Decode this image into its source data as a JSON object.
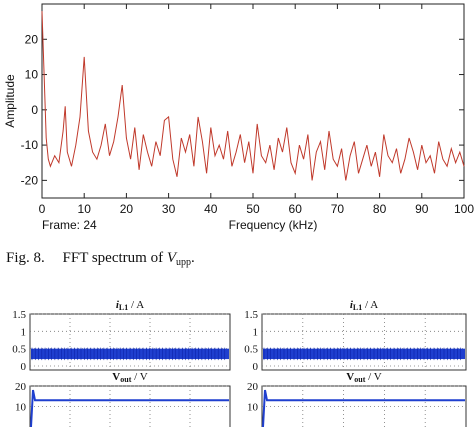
{
  "figure8": {
    "caption_label": "Fig. 8.",
    "caption_text": "FFT spectrum of",
    "caption_symbol": "V",
    "caption_subscript": "upp",
    "caption_end": ".",
    "frame_text": "Frame: 24",
    "colors": {
      "trace": "#c0392b",
      "axis": "#222222"
    }
  },
  "chart_data": [
    {
      "type": "line",
      "xlabel": "Frequency (kHz)",
      "ylabel": "Amplitude",
      "xlim": [
        0,
        100
      ],
      "ylim": [
        -25,
        30
      ],
      "xticks": [
        0,
        10,
        20,
        30,
        40,
        50,
        60,
        70,
        80,
        90,
        100
      ],
      "yticks": [
        20,
        10,
        0,
        -10,
        -20
      ],
      "grid": false,
      "series": [
        {
          "x": [
            0,
            0.5,
            1,
            1.5,
            2,
            3,
            4,
            5,
            5.5,
            6,
            7,
            8,
            9,
            10,
            11,
            12,
            13,
            14,
            15,
            16,
            17,
            18,
            19,
            20,
            21,
            22,
            23,
            24,
            25,
            26,
            27,
            28,
            29,
            30,
            31,
            32,
            33,
            34,
            35,
            36,
            37,
            38,
            39,
            40,
            41,
            42,
            43,
            44,
            45,
            46,
            47,
            48,
            49,
            50,
            51,
            52,
            53,
            54,
            55,
            56,
            57,
            58,
            59,
            60,
            61,
            62,
            63,
            64,
            65,
            66,
            67,
            68,
            69,
            70,
            71,
            72,
            73,
            74,
            75,
            76,
            77,
            78,
            79,
            80,
            81,
            82,
            83,
            84,
            85,
            86,
            87,
            88,
            89,
            90,
            91,
            92,
            93,
            94,
            95,
            96,
            97,
            98,
            99,
            100
          ],
          "y": [
            28,
            10,
            -8,
            -14,
            -16,
            -13,
            -15,
            -6,
            1,
            -12,
            -16,
            -10,
            -2,
            15,
            -6,
            -12,
            -14,
            -10,
            -4,
            -13,
            -9,
            -2,
            7,
            -8,
            -14,
            -5,
            -17,
            -7,
            -12,
            -16,
            -9,
            -13,
            -3,
            -2,
            -14,
            -19,
            -8,
            -12,
            -7,
            -16,
            -2,
            -9,
            -18,
            -5,
            -13,
            -10,
            -14,
            -6,
            -16,
            -12,
            -7,
            -15,
            -9,
            -18,
            -4,
            -13,
            -15,
            -10,
            -17,
            -8,
            -12,
            -5,
            -15,
            -18,
            -10,
            -14,
            -7,
            -20,
            -12,
            -9,
            -17,
            -6,
            -14,
            -16,
            -11,
            -20,
            -13,
            -9,
            -18,
            -14,
            -10,
            -16,
            -12,
            -19,
            -7,
            -13,
            -15,
            -11,
            -18,
            -14,
            -8,
            -12,
            -17,
            -10,
            -15,
            -13,
            -18,
            -9,
            -14,
            -16,
            -11,
            -15,
            -12,
            -16
          ]
        }
      ]
    },
    {
      "type": "line",
      "title": "i_L1 / A",
      "ylim": [
        0,
        1.5
      ],
      "yticks": [
        1.5,
        1,
        0.5,
        0
      ],
      "grid": true,
      "series": [
        {
          "x": [
            0,
            1
          ],
          "y": [
            0.35,
            0.35
          ],
          "band": [
            0.2,
            0.5
          ]
        }
      ]
    },
    {
      "type": "line",
      "title": "i_L1 / A",
      "ylim": [
        0,
        1.5
      ],
      "yticks": [
        1.5,
        1,
        0.5,
        0
      ],
      "grid": true,
      "series": [
        {
          "x": [
            0,
            1
          ],
          "y": [
            0.35,
            0.35
          ],
          "band": [
            0.2,
            0.5
          ]
        }
      ]
    },
    {
      "type": "line",
      "title": "V_out / V",
      "ylim": [
        0,
        20
      ],
      "yticks": [
        20,
        10
      ],
      "grid": true,
      "series": [
        {
          "x": [
            0,
            0.01,
            0.02,
            1
          ],
          "y": [
            0,
            18,
            13,
            13
          ]
        }
      ]
    },
    {
      "type": "line",
      "title": "V_out / V",
      "ylim": [
        0,
        20
      ],
      "yticks": [
        20,
        10
      ],
      "grid": true,
      "series": [
        {
          "x": [
            0,
            0.01,
            0.02,
            1
          ],
          "y": [
            0,
            18,
            13,
            13
          ]
        }
      ]
    }
  ],
  "scope_labels": {
    "i_main": "i",
    "i_sub": "L1",
    "v_main": "V",
    "v_sub": "out",
    "slash": "/",
    "unit_a": "A",
    "unit_v": "V"
  }
}
